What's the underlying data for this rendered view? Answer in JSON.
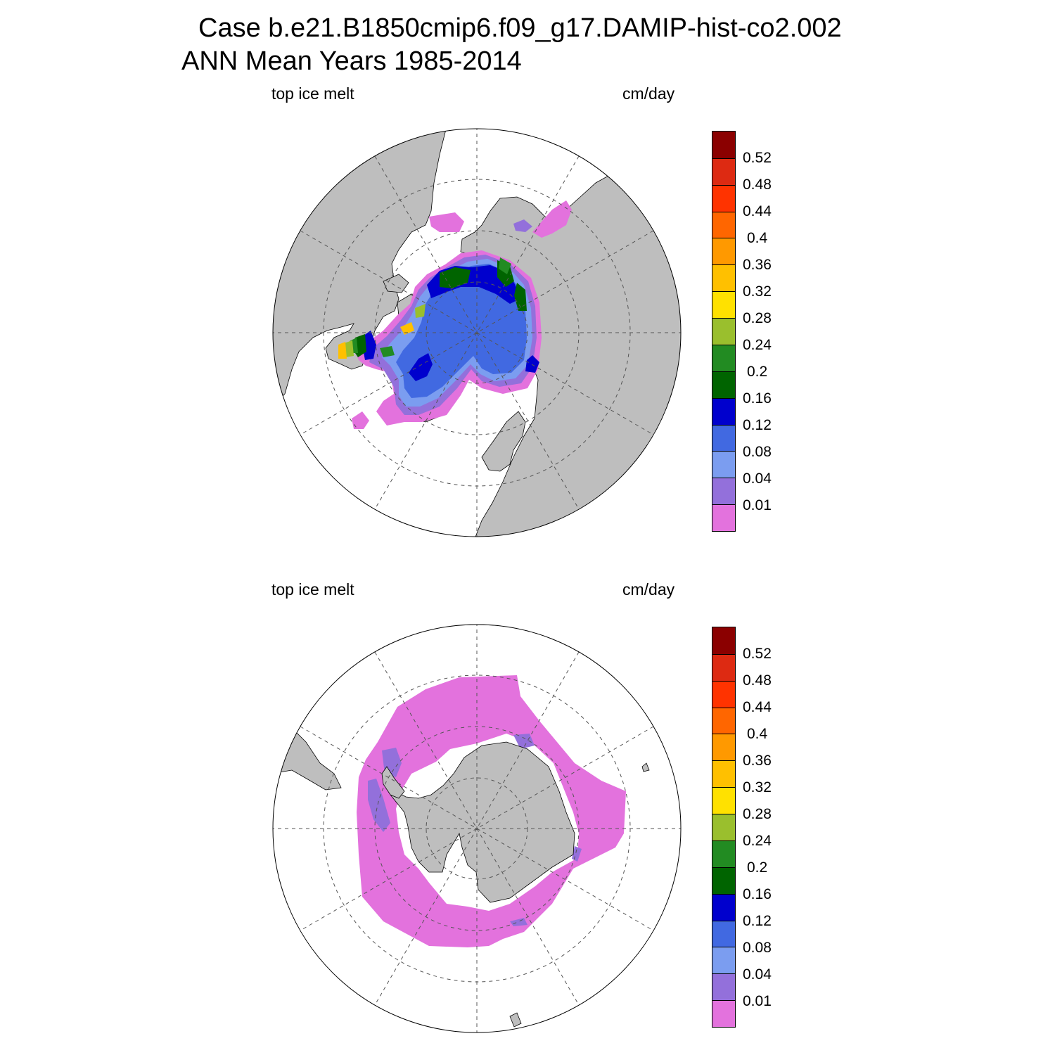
{
  "header": {
    "title_line1": "Case b.e21.B1850cmip6.f09_g17.DAMIP-hist-co2.002",
    "title_line2": "ANN Mean    Years 1985-2014"
  },
  "panels": [
    {
      "id": "nh",
      "hemisphere": "north",
      "variable_label": "top ice melt",
      "units_label": "cm/day"
    },
    {
      "id": "sh",
      "hemisphere": "south",
      "variable_label": "top ice melt",
      "units_label": "cm/day"
    }
  ],
  "colorbar": {
    "levels": [
      "0.52",
      "0.48",
      "0.44",
      "0.4",
      "0.36",
      "0.32",
      "0.28",
      "0.24",
      "0.2",
      "0.16",
      "0.12",
      "0.08",
      "0.04",
      "0.01"
    ],
    "colors_top_to_bottom": [
      "#8b0000",
      "#dd2a12",
      "#ff3300",
      "#ff6600",
      "#ff9900",
      "#ffc000",
      "#ffe100",
      "#9abf2d",
      "#228b22",
      "#006400",
      "#0000cd",
      "#4169e1",
      "#7b9df0",
      "#9370db",
      "#e372dd"
    ]
  },
  "colors": {
    "land": "#bebebe",
    "ocean": "#ffffff",
    "grid": "#555555"
  }
}
